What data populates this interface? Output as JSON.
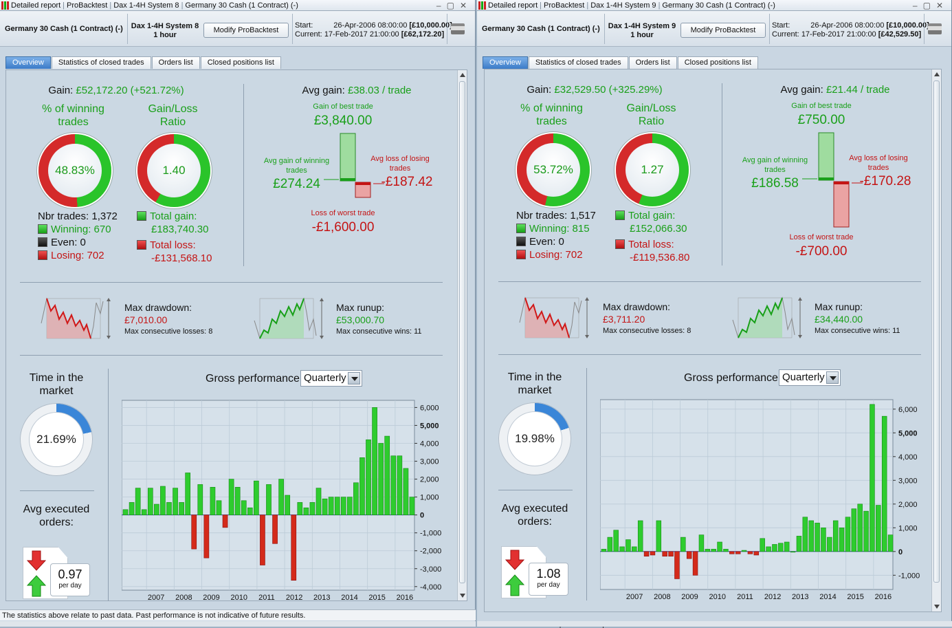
{
  "windows": [
    {
      "title": [
        "Detailed report",
        "ProBacktest",
        "Dax 1-4H System 8",
        "Germany 30 Cash (1 Contract) (-)"
      ],
      "instrument": "Germany 30 Cash (1 Contract) (-)",
      "system": "Dax 1-4H System 8",
      "timeframe": "1 hour",
      "modify": "Modify ProBacktest",
      "start_label": "Start:",
      "start": "26-Apr-2006 08:00:00",
      "start_capital": "[£10,000.00]",
      "current_label": "Current:",
      "current": "17-Feb-2017 21:00:00",
      "current_capital": "[£62,172.20]",
      "tabs": [
        "Overview",
        "Statistics of closed trades",
        "Orders list",
        "Closed positions list"
      ],
      "gain_label": "Gain:",
      "gain": "£52,172.20 (+521.72%)",
      "winning_label": "% of winning trades",
      "winning_pct": "48.83%",
      "winning_fraction": 0.4883,
      "ratio_label": "Gain/Loss Ratio",
      "ratio": "1.40",
      "ratio_fraction": 0.583,
      "nbr_trades": "Nbr trades: 1,372",
      "winning": "Winning: 670",
      "even": "Even: 0",
      "losing": "Losing: 702",
      "total_gain_label": "Total gain:",
      "total_gain": "£183,740.30",
      "total_loss_label": "Total loss:",
      "total_loss": "-£131,568.10",
      "avg_gain_label": "Avg gain:",
      "avg_gain": "£38.03 / trade",
      "best_label": "Gain of best trade",
      "best": "£3,840.00",
      "avg_gain_win_label": "Avg gain of winning trades",
      "avg_gain_win": "£274.24",
      "avg_loss_label": "Avg loss of losing trades",
      "avg_loss": "-£187.42",
      "worst_label": "Loss of worst trade",
      "worst": "-£1,600.00",
      "dd_label": "Max drawdown:",
      "dd": "£7,010.00",
      "dd_sub": "Max consecutive losses: 8",
      "ru_label": "Max runup:",
      "ru": "£53,000.70",
      "ru_sub": "Max consecutive wins: 11",
      "time_label": "Time in the market",
      "time": "21.69%",
      "time_fraction": 0.2169,
      "orders_label": "Avg executed orders:",
      "orders": "0.97",
      "orders_unit": "per day",
      "perf_label": "Gross performance",
      "perf_period": "Quarterly",
      "footer": "The statistics above relate to past data. Past performance is not indicative of future results.",
      "chart_data": {
        "type": "bar",
        "ylim": [
          -4200,
          6400
        ],
        "yticks": [
          6000,
          5000,
          4000,
          3000,
          2000,
          1000,
          0,
          -1000,
          -2000,
          -3000,
          -4000
        ],
        "ytick_labels": [
          "6,000",
          "5,000",
          "4,000",
          "3,000",
          "2,000",
          "1,000",
          "0",
          "-1,000",
          "-2,000",
          "-3,000",
          "-4,000"
        ],
        "xticks": [
          "2007",
          "2008",
          "2009",
          "2010",
          "2011",
          "2012",
          "2013",
          "2014",
          "2015",
          "2016"
        ],
        "values": [
          300,
          700,
          1500,
          300,
          1500,
          600,
          1600,
          700,
          1500,
          700,
          2350,
          -1900,
          1700,
          -2400,
          1550,
          800,
          -700,
          2000,
          1550,
          800,
          400,
          1900,
          -2800,
          1700,
          -1600,
          2000,
          1100,
          -3650,
          700,
          400,
          700,
          1500,
          900,
          1000,
          1000,
          1000,
          1000,
          1800,
          3200,
          4200,
          6000,
          4000,
          4400,
          3300,
          3300,
          2600,
          1000
        ]
      }
    },
    {
      "title": [
        "Detailed report",
        "ProBacktest",
        "Dax 1-4H System 9",
        "Germany 30 Cash (1 Contract) (-)"
      ],
      "instrument": "Germany 30 Cash (1 Contract) (-)",
      "system": "Dax 1-4H System 9",
      "timeframe": "1 hour",
      "modify": "Modify ProBacktest",
      "start_label": "Start:",
      "start": "26-Apr-2006 08:00:00",
      "start_capital": "[£10,000.00]",
      "current_label": "Current:",
      "current": "17-Feb-2017 21:00:00",
      "current_capital": "[£42,529.50]",
      "tabs": [
        "Overview",
        "Statistics of closed trades",
        "Orders list",
        "Closed positions list"
      ],
      "gain_label": "Gain:",
      "gain": "£32,529.50 (+325.29%)",
      "winning_label": "% of winning trades",
      "winning_pct": "53.72%",
      "winning_fraction": 0.5372,
      "ratio_label": "Gain/Loss Ratio",
      "ratio": "1.27",
      "ratio_fraction": 0.56,
      "nbr_trades": "Nbr trades: 1,517",
      "winning": "Winning: 815",
      "even": "Even: 0",
      "losing": "Losing: 702",
      "total_gain_label": "Total gain:",
      "total_gain": "£152,066.30",
      "total_loss_label": "Total loss:",
      "total_loss": "-£119,536.80",
      "avg_gain_label": "Avg gain:",
      "avg_gain": "£21.44 / trade",
      "best_label": "Gain of best trade",
      "best": "£750.00",
      "avg_gain_win_label": "Avg gain of winning trades",
      "avg_gain_win": "£186.58",
      "avg_loss_label": "Avg loss of losing trades",
      "avg_loss": "-£170.28",
      "worst_label": "Loss of worst trade",
      "worst": "-£700.00",
      "dd_label": "Max drawdown:",
      "dd": "£3,711.20",
      "dd_sub": "Max consecutive losses: 8",
      "ru_label": "Max runup:",
      "ru": "£34,440.00",
      "ru_sub": "Max consecutive wins: 11",
      "time_label": "Time in the market",
      "time": "19.98%",
      "time_fraction": 0.1998,
      "orders_label": "Avg executed orders:",
      "orders": "1.08",
      "orders_unit": "per day",
      "perf_label": "Gross performance",
      "perf_period": "Quarterly",
      "footer": "The statistics above relate to past data. Past performance is not indicative of future results.",
      "chart_data": {
        "type": "bar",
        "ylim": [
          -1600,
          6400
        ],
        "yticks": [
          6000,
          5000,
          4000,
          3000,
          2000,
          1000,
          0,
          -1000
        ],
        "ytick_labels": [
          "6,000",
          "5,000",
          "4,000",
          "3,000",
          "2,000",
          "1,000",
          "0",
          "-1,000"
        ],
        "xticks": [
          "2007",
          "2008",
          "2009",
          "2010",
          "2011",
          "2012",
          "2013",
          "2014",
          "2015",
          "2016"
        ],
        "values": [
          100,
          600,
          900,
          200,
          500,
          200,
          1300,
          -200,
          -150,
          1300,
          -200,
          -200,
          -1150,
          600,
          -300,
          -1000,
          700,
          100,
          100,
          400,
          100,
          -100,
          -100,
          50,
          -100,
          -150,
          550,
          200,
          300,
          350,
          400,
          0,
          650,
          1450,
          1300,
          1200,
          1000,
          600,
          1300,
          1000,
          1450,
          1800,
          2000,
          1700,
          6200,
          1950,
          5700,
          700
        ]
      }
    }
  ]
}
